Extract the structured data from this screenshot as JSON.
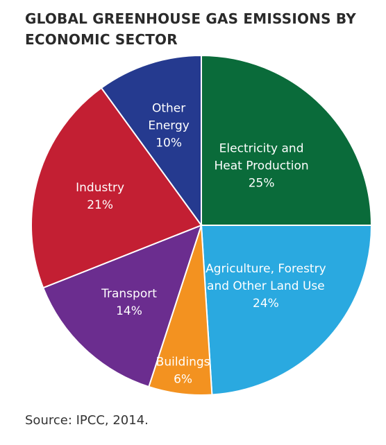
{
  "title": "GLOBAL GREENHOUSE GAS EMISSIONS BY ECONOMIC SECTOR",
  "source": "Source: IPCC, 2014.",
  "chart_data": {
    "type": "pie",
    "title": "GLOBAL GREENHOUSE GAS EMISSIONS BY ECONOMIC SECTOR",
    "slices": [
      {
        "label": "Electricity and Heat Production",
        "label_lines": [
          "Electricity and",
          "Heat Production"
        ],
        "value": 25,
        "value_label": "25%",
        "color": "#0a6b3a"
      },
      {
        "label": "Agriculture, Forestry and Other Land Use",
        "label_lines": [
          "Agriculture, Forestry",
          "and Other Land Use"
        ],
        "value": 24,
        "value_label": "24%",
        "color": "#2aa9e0"
      },
      {
        "label": "Buildings",
        "label_lines": [
          "Buildings"
        ],
        "value": 6,
        "value_label": "6%",
        "color": "#f39220"
      },
      {
        "label": "Transport",
        "label_lines": [
          "Transport"
        ],
        "value": 14,
        "value_label": "14%",
        "color": "#6b2d8f"
      },
      {
        "label": "Industry",
        "label_lines": [
          "Industry"
        ],
        "value": 21,
        "value_label": "21%",
        "color": "#c31f33"
      },
      {
        "label": "Other Energy",
        "label_lines": [
          "Other",
          "Energy"
        ],
        "value": 10,
        "value_label": "10%",
        "color": "#253a8f"
      }
    ]
  }
}
